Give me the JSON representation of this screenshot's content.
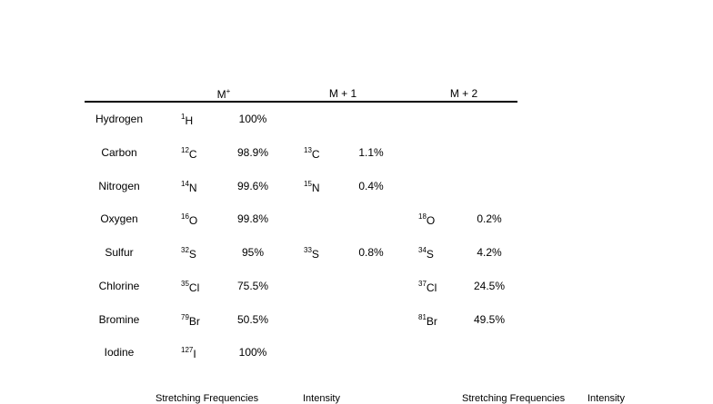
{
  "headers": {
    "m": "M",
    "m_sup": "+",
    "m1": "M + 1",
    "m2": "M + 2"
  },
  "rows": [
    {
      "name": "Hydrogen",
      "m0": {
        "mass": "1",
        "sym": "H",
        "pct": "100%"
      }
    },
    {
      "name": "Carbon",
      "m0": {
        "mass": "12",
        "sym": "C",
        "pct": "98.9%"
      },
      "m1": {
        "mass": "13",
        "sym": "C",
        "pct": "1.1%"
      }
    },
    {
      "name": "Nitrogen",
      "m0": {
        "mass": "14",
        "sym": "N",
        "pct": "99.6%"
      },
      "m1": {
        "mass": "15",
        "sym": "N",
        "pct": "0.4%"
      }
    },
    {
      "name": "Oxygen",
      "m0": {
        "mass": "16",
        "sym": "O",
        "pct": "99.8%"
      },
      "m2": {
        "mass": "18",
        "sym": "O",
        "pct": "0.2%"
      }
    },
    {
      "name": "Sulfur",
      "m0": {
        "mass": "32",
        "sym": "S",
        "pct": "95%"
      },
      "m1": {
        "mass": "33",
        "sym": "S",
        "pct": "0.8%"
      },
      "m2": {
        "mass": "34",
        "sym": "S",
        "pct": "4.2%"
      }
    },
    {
      "name": "Chlorine",
      "m0": {
        "mass": "35",
        "sym": "Cl",
        "pct": "75.5%"
      },
      "m2": {
        "mass": "37",
        "sym": "Cl",
        "pct": "24.5%"
      }
    },
    {
      "name": "Bromine",
      "m0": {
        "mass": "79",
        "sym": "Br",
        "pct": "50.5%"
      },
      "m2": {
        "mass": "81",
        "sym": "Br",
        "pct": "49.5%"
      }
    },
    {
      "name": "Iodine",
      "m0": {
        "mass": "127",
        "sym": "I",
        "pct": "100%"
      }
    }
  ],
  "footer": {
    "left_a": "Stretching Frequencies",
    "left_b": "Intensity",
    "right_a": "Stretching Frequencies",
    "right_b": "Intensity"
  }
}
